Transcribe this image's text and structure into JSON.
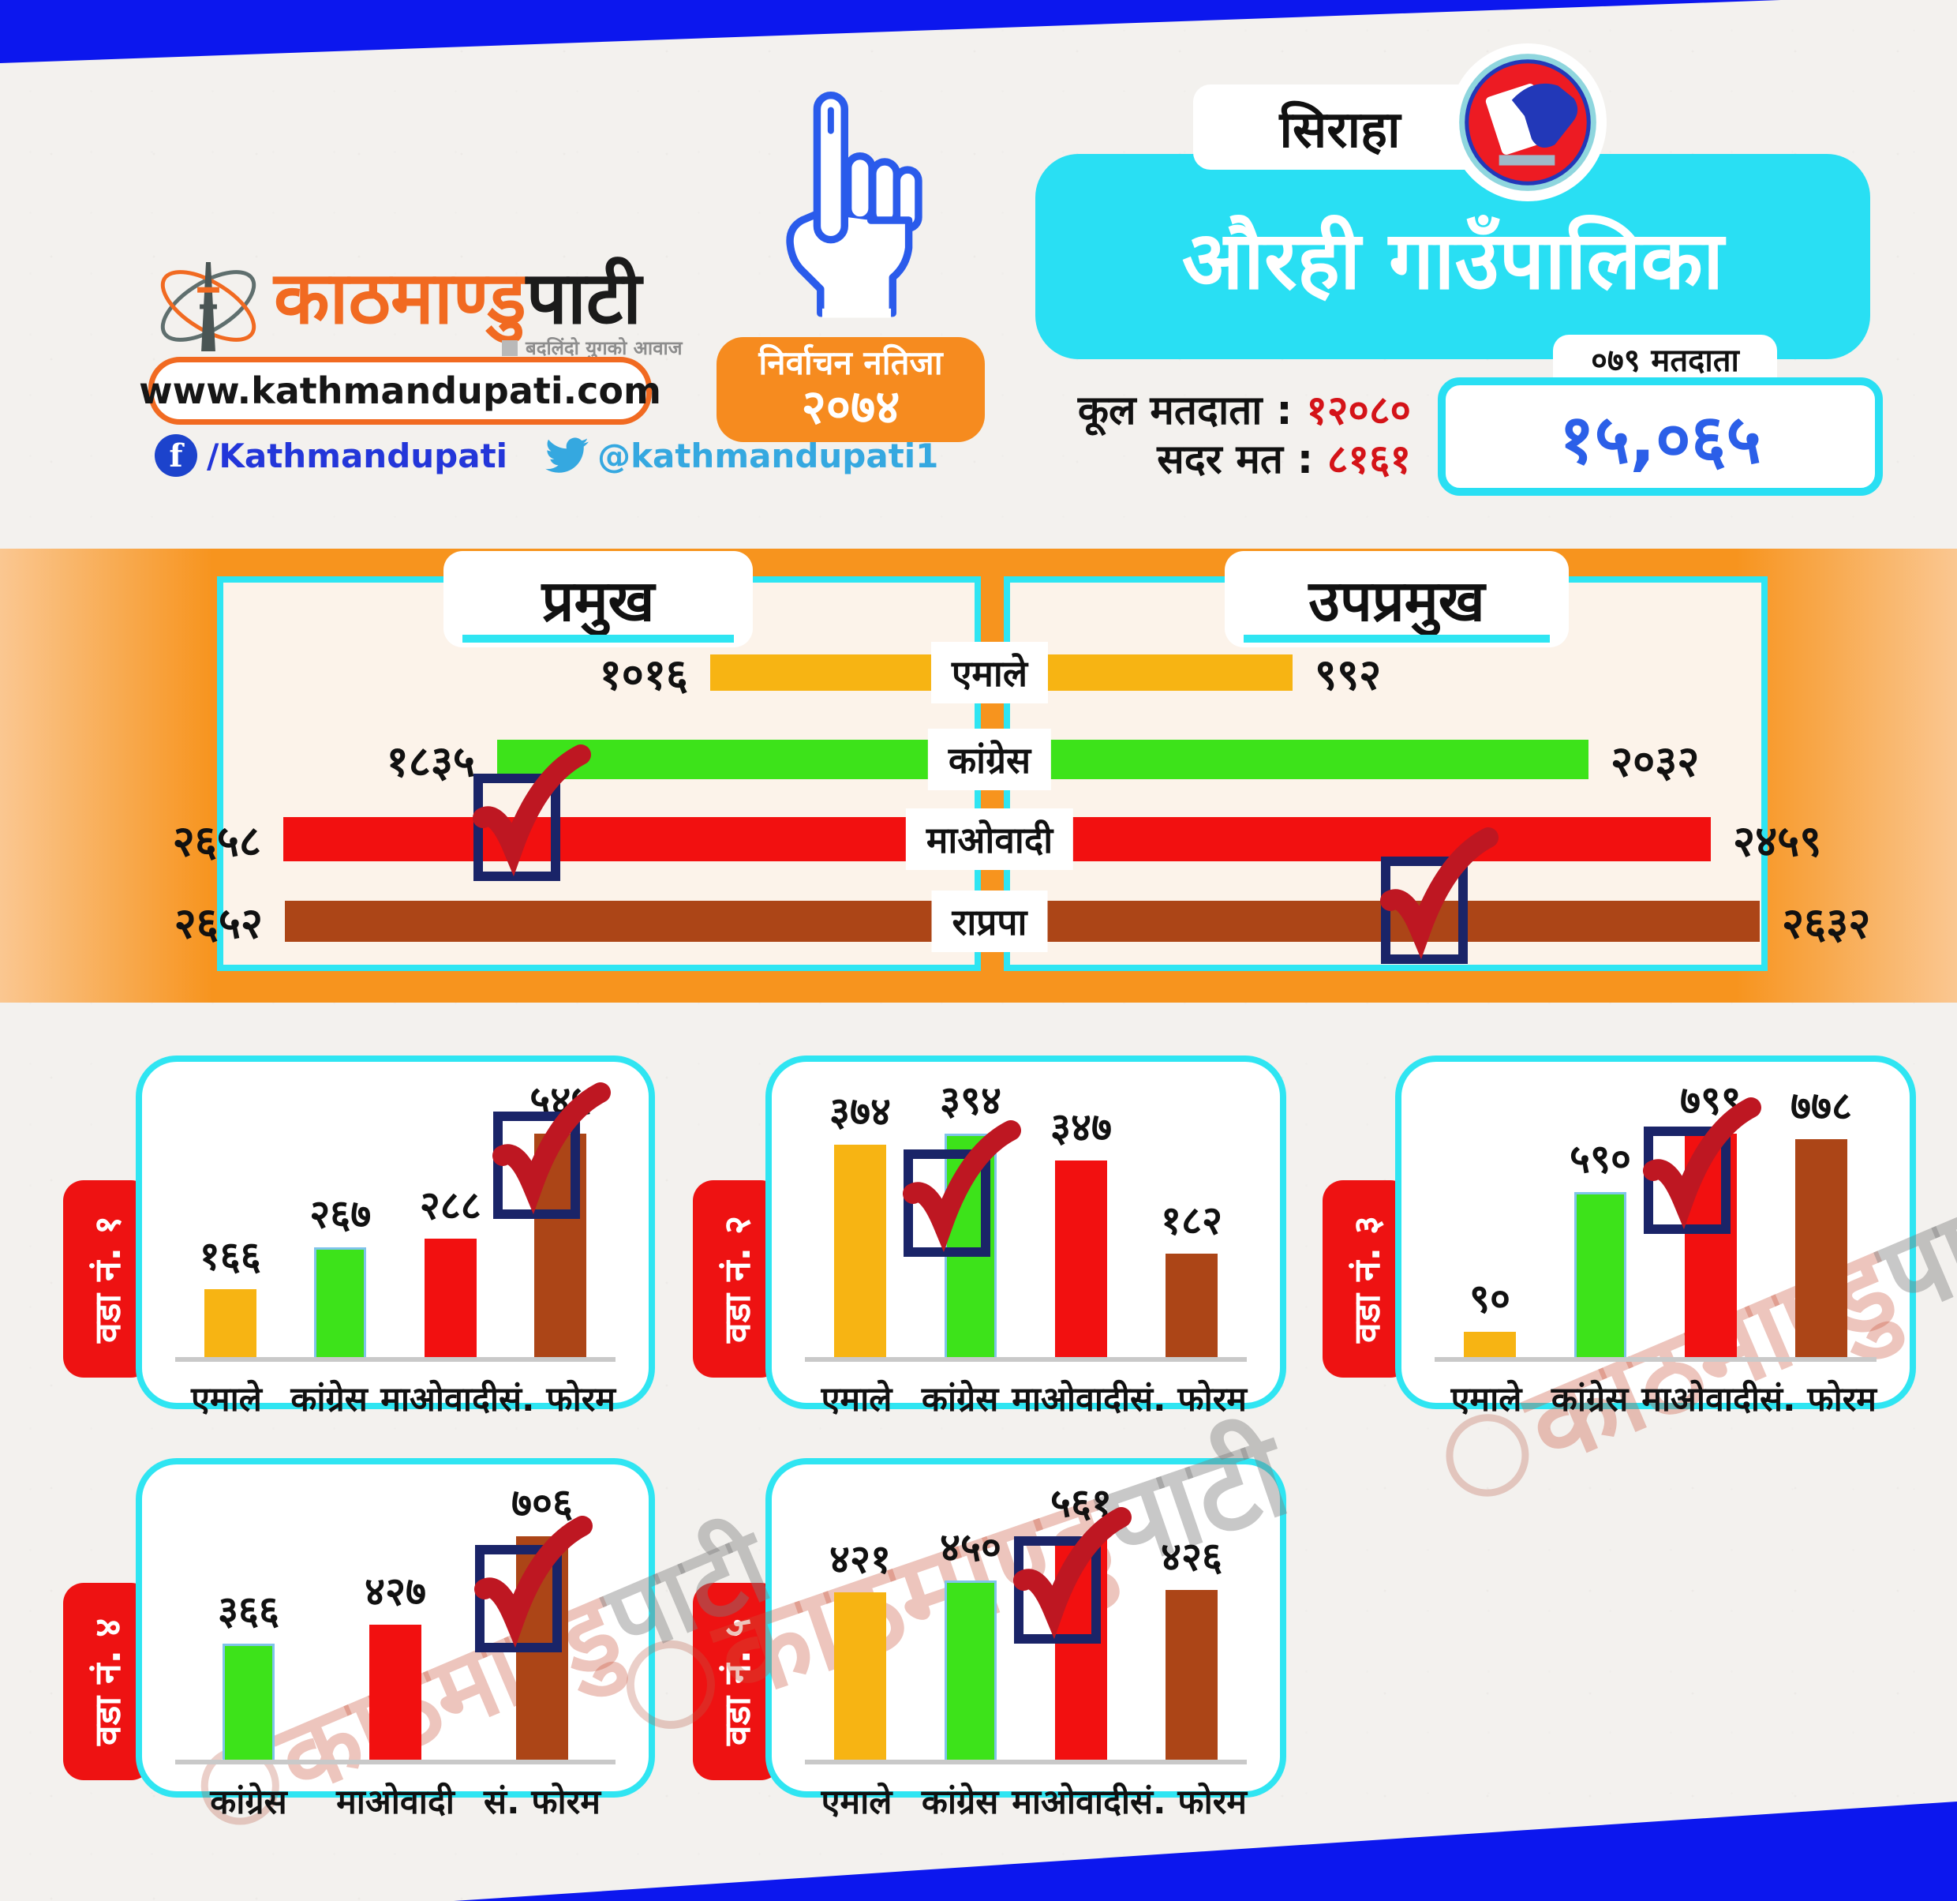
{
  "brand": {
    "logo_main": "काठमाण्डु",
    "logo_suffix": "पाटी",
    "tagline": "बदलिंदो युगको आवाज",
    "website": "www.kathmandupati.com",
    "facebook": "/Kathmandupati",
    "twitter": "@kathmandupati1",
    "fb_glyph": "f"
  },
  "header": {
    "district": "सिराहा",
    "municipality": "औरही गाउँपालिका",
    "badge_line1": "निर्वाचन नतिजा",
    "badge_year": "२०७४",
    "total_voters_label": "कूल मतदाता",
    "total_voters_value": "१२०८०",
    "valid_votes_label": "सदर मत",
    "valid_votes_value": "८१६१",
    "voters_2079_label": "०७९ मतदाता",
    "voters_2079_value": "१५,०६५",
    "separator": " : "
  },
  "parties": [
    {
      "name": "एमाले",
      "color": "#F7B413"
    },
    {
      "name": "कांग्रेस",
      "color": "#3DE31A"
    },
    {
      "name": "माओवादी",
      "color": "#F21010"
    },
    {
      "name": "राप्रपा",
      "color": "#AC4517"
    },
    {
      "name": "सं. फोरम",
      "color": "#AC4517"
    }
  ],
  "colors": {
    "banner_blue": "#0C17EE",
    "band_orange": "#F7941E",
    "cyan": "#2FE5F2",
    "panel_cream": "#FCF3EA",
    "tab_red": "#EE1212",
    "badge_orange": "#F68B1F",
    "stat_red": "#D41318",
    "voters_blue": "#2B5FE8",
    "logo_orange": "#F16A21",
    "congress_green": "#3DE31A",
    "check_navy": "#1A2468",
    "check_red": "#BE1722"
  },
  "chart_data": [
    {
      "type": "bar",
      "orientation": "horizontal",
      "title": "प्रमुख",
      "categories": [
        "एमाले",
        "कांग्रेस",
        "माओवादी",
        "राप्रपा"
      ],
      "values": [
        1016,
        1835,
        2658,
        2652
      ],
      "value_labels": [
        "१०१६",
        "१८३५",
        "२६५८",
        "२६५२"
      ],
      "winner_index": 2
    },
    {
      "type": "bar",
      "orientation": "horizontal",
      "title": "उपप्रमुख",
      "categories": [
        "एमाले",
        "कांग्रेस",
        "माओवादी",
        "राप्रपा"
      ],
      "values": [
        992,
        2032,
        2459,
        2632
      ],
      "value_labels": [
        "९९२",
        "२०३२",
        "२४५९",
        "२६३२"
      ],
      "winner_index": 3
    },
    {
      "type": "bar",
      "title": "वडा नं. १",
      "categories": [
        "एमाले",
        "कांग्रेस",
        "माओवादी",
        "सं. फोरम"
      ],
      "values": [
        166,
        267,
        288,
        545
      ],
      "value_labels": [
        "१६६",
        "२६७",
        "२८८",
        "५४५"
      ],
      "winner_index": 3
    },
    {
      "type": "bar",
      "title": "वडा नं. २",
      "categories": [
        "एमाले",
        "कांग्रेस",
        "माओवादी",
        "सं. फोरम"
      ],
      "values": [
        374,
        394,
        347,
        182
      ],
      "value_labels": [
        "३७४",
        "३९४",
        "३४७",
        "१८२"
      ],
      "winner_index": 1
    },
    {
      "type": "bar",
      "title": "वडा नं. ३",
      "categories": [
        "एमाले",
        "कांग्रेस",
        "माओवादी",
        "सं. फोरम"
      ],
      "values": [
        90,
        590,
        799,
        778
      ],
      "value_labels": [
        "९०",
        "५९०",
        "७९९",
        "७७८"
      ],
      "winner_index": 2
    },
    {
      "type": "bar",
      "title": "वडा नं. ४",
      "categories": [
        "कांग्रेस",
        "माओवादी",
        "सं. फोरम"
      ],
      "values": [
        366,
        427,
        706
      ],
      "value_labels": [
        "३६६",
        "४२७",
        "७०६"
      ],
      "winner_index": 2
    },
    {
      "type": "bar",
      "title": "वडा नं. ५",
      "categories": [
        "एमाले",
        "कांग्रेस",
        "माओवादी",
        "सं. फोरम"
      ],
      "values": [
        421,
        450,
        561,
        426
      ],
      "value_labels": [
        "४२१",
        "४५०",
        "५६१",
        "४२६"
      ],
      "winner_index": 2
    }
  ]
}
